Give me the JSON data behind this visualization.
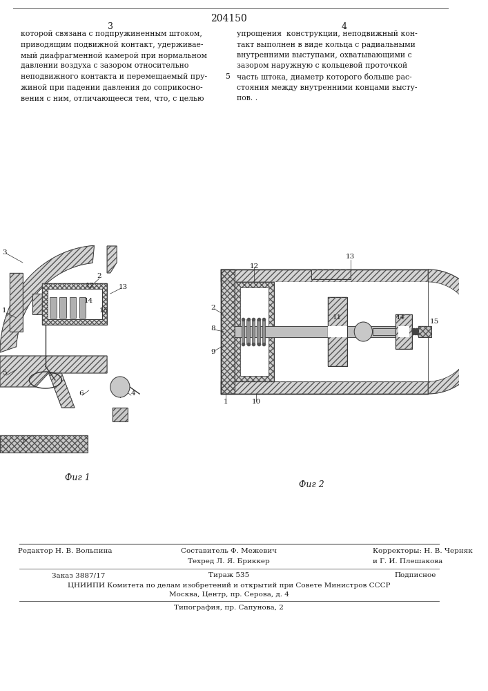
{
  "patent_number": "204150",
  "page_left": "3",
  "page_right": "4",
  "text_col1": [
    "которой связана с подпружиненным штоком,",
    "приводящим подвижной контакт, удерживае-",
    "мый диафрагменной камерой при нормальном",
    "давлении воздуха с зазором относительно",
    "неподвижного контакта и перемещаемый пру-",
    "жиной при падении давления до соприкосно-",
    "вения с ним, отличающееся тем, что, с целью"
  ],
  "text_col2": [
    "упрощения  конструкции, неподвижный кон-",
    "такт выполнен в виде кольца с радиальными",
    "внутренними выступами, охватывающими с",
    "зазором наружную с кольцевой проточкой",
    "часть штока, диаметр которого больше рас-",
    "стояния между внутренними концами высту-",
    "пов. ."
  ],
  "middle_number": "5",
  "fig1_label": "Фиг 1",
  "fig2_label": "Фиг 2",
  "footer_editor": "Редактор Н. В. Вольпина",
  "footer_compiler": "Составитель Ф. Межевич",
  "footer_tech": "Техред Л. Я. Бриккер",
  "footer_correctors": "Корректоры: Н. В. Черняк",
  "footer_correctors2": "и Г. И. Плешакова",
  "footer_zakaz": "Заказ 3887/17",
  "footer_tirazh": "Тираж 535",
  "footer_podpisnoe": "Подписное",
  "footer_tsniipi": "ЦНИИПИ Комитета по делам изобретений и открытий при Совете Министров СССР",
  "footer_moscow": "Москва, Центр, пр. Серова, д. 4",
  "footer_tipografia": "Типография, пр. Сапунова, 2",
  "bg_color": "#ffffff",
  "text_color": "#1a1a1a",
  "line_color": "#2a2a2a"
}
